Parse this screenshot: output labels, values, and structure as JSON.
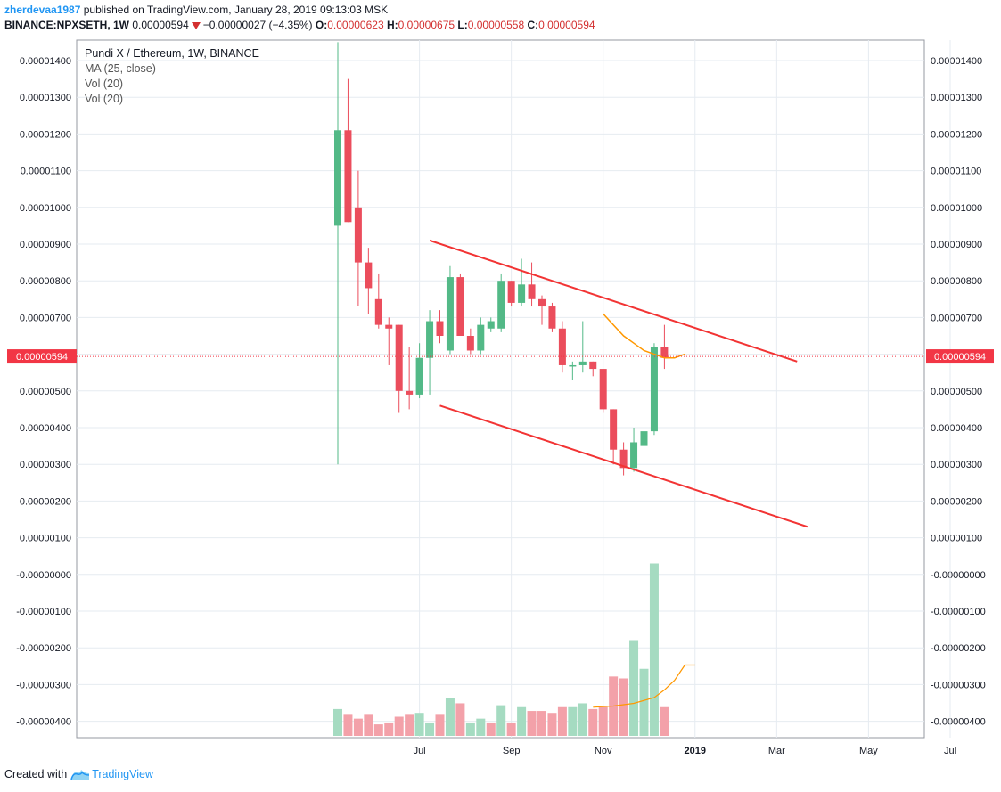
{
  "header": {
    "author": "zherdevaa1987",
    "published": " published on TradingView.com, January 28, 2019 09:13:03 MSK",
    "symbol": "BINANCE:NPXSETH, 1W",
    "last_value": "0.00000594",
    "change": "−0.00000027 (−4.35%)",
    "o_label": "O:",
    "o_value": "0.00000623",
    "h_label": "H:",
    "h_value": "0.00000675",
    "l_label": "L:",
    "l_value": "0.00000558",
    "c_label": "C:",
    "c_value": "0.00000594"
  },
  "legend": {
    "title": "Pundi X / Ethereum, 1W, BINANCE",
    "ma": "MA (25, close)",
    "vol1": "Vol (20)",
    "vol2": "Vol (20)"
  },
  "footer": {
    "created_with": "Created with",
    "brand": "TradingView"
  },
  "colors": {
    "up": "#53b987",
    "down": "#eb4d5c",
    "trend": "#f23434",
    "ma": "#ff9800",
    "grid": "#e6ebf1",
    "last_price": "#f23645"
  },
  "chart_data": {
    "type": "candlestick",
    "title": "Pundi X / Ethereum, 1W, BINANCE",
    "y_min": -4.4e-06,
    "y_max": 1.45e-05,
    "y_ticks": [
      1.4e-05,
      1.3e-05,
      1.2e-05,
      1.1e-05,
      1e-05,
      9e-06,
      8e-06,
      7e-06,
      6e-06,
      5e-06,
      4e-06,
      3e-06,
      2e-06,
      1e-06,
      0,
      -1e-06,
      -2e-06,
      -3e-06,
      -4e-06
    ],
    "y_tick_labels": [
      "0.00001400",
      "0.00001300",
      "0.00001200",
      "0.00001100",
      "0.00001000",
      "0.00000900",
      "0.00000800",
      "0.00000700",
      "",
      "0.00000500",
      "0.00000400",
      "0.00000300",
      "0.00000200",
      "0.00000100",
      "-0.00000000",
      "-0.00000100",
      "-0.00000200",
      "-0.00000300",
      "-0.00000400"
    ],
    "x_labels": [
      {
        "label": "Jul",
        "week": 2,
        "bold": false
      },
      {
        "label": "Sep",
        "week": 11,
        "bold": false
      },
      {
        "label": "Nov",
        "week": 20,
        "bold": false
      },
      {
        "label": "2019",
        "week": 29,
        "bold": true
      },
      {
        "label": "Mar",
        "week": 37,
        "bold": false
      },
      {
        "label": "May",
        "week": 46,
        "bold": false
      },
      {
        "label": "Jul",
        "week": 54,
        "bold": false
      }
    ],
    "x_range_weeks": [
      -26,
      56
    ],
    "candles": [
      {
        "o": 9.5e-06,
        "h": 1.45e-05,
        "l": 3e-06,
        "c": 1.21e-05
      },
      {
        "o": 1.21e-05,
        "h": 1.35e-05,
        "l": 9.6e-06,
        "c": 9.6e-06
      },
      {
        "o": 1e-05,
        "h": 1.1e-05,
        "l": 7.3e-06,
        "c": 8.5e-06
      },
      {
        "o": 8.5e-06,
        "h": 8.9e-06,
        "l": 7.1e-06,
        "c": 7.8e-06
      },
      {
        "o": 7.5e-06,
        "h": 8.2e-06,
        "l": 6.7e-06,
        "c": 6.8e-06
      },
      {
        "o": 6.8e-06,
        "h": 7e-06,
        "l": 5.7e-06,
        "c": 6.7e-06
      },
      {
        "o": 6.8e-06,
        "h": 6.8e-06,
        "l": 4.4e-06,
        "c": 5e-06
      },
      {
        "o": 5e-06,
        "h": 6.2e-06,
        "l": 4.5e-06,
        "c": 4.9e-06
      },
      {
        "o": 4.9e-06,
        "h": 6.3e-06,
        "l": 4.8e-06,
        "c": 5.9e-06
      },
      {
        "o": 5.9e-06,
        "h": 7.2e-06,
        "l": 4.9e-06,
        "c": 6.9e-06
      },
      {
        "o": 6.9e-06,
        "h": 7.2e-06,
        "l": 6.3e-06,
        "c": 6.5e-06
      },
      {
        "o": 6.1e-06,
        "h": 8.4e-06,
        "l": 6e-06,
        "c": 8.1e-06
      },
      {
        "o": 8.1e-06,
        "h": 8.2e-06,
        "l": 6.5e-06,
        "c": 6.5e-06
      },
      {
        "o": 6.5e-06,
        "h": 6.7e-06,
        "l": 6e-06,
        "c": 6.1e-06
      },
      {
        "o": 6.1e-06,
        "h": 7e-06,
        "l": 6e-06,
        "c": 6.8e-06
      },
      {
        "o": 6.7e-06,
        "h": 7e-06,
        "l": 6.6e-06,
        "c": 6.9e-06
      },
      {
        "o": 6.7e-06,
        "h": 8.2e-06,
        "l": 6.6e-06,
        "c": 8e-06
      },
      {
        "o": 8e-06,
        "h": 8e-06,
        "l": 7.3e-06,
        "c": 7.4e-06
      },
      {
        "o": 7.4e-06,
        "h": 8.6e-06,
        "l": 7.3e-06,
        "c": 7.9e-06
      },
      {
        "o": 7.9e-06,
        "h": 8.5e-06,
        "l": 7.3e-06,
        "c": 7.5e-06
      },
      {
        "o": 7.5e-06,
        "h": 7.6e-06,
        "l": 6.8e-06,
        "c": 7.3e-06
      },
      {
        "o": 7.3e-06,
        "h": 7.4e-06,
        "l": 6.6e-06,
        "c": 6.7e-06
      },
      {
        "o": 6.7e-06,
        "h": 6.9e-06,
        "l": 5.5e-06,
        "c": 5.7e-06
      },
      {
        "o": 5.7e-06,
        "h": 5.8e-06,
        "l": 5.3e-06,
        "c": 5.7e-06
      },
      {
        "o": 5.7e-06,
        "h": 6.9e-06,
        "l": 5.5e-06,
        "c": 5.8e-06
      },
      {
        "o": 5.8e-06,
        "h": 5.8e-06,
        "l": 5.4e-06,
        "c": 5.6e-06
      },
      {
        "o": 5.6e-06,
        "h": 5.6e-06,
        "l": 4.4e-06,
        "c": 4.5e-06
      },
      {
        "o": 4.5e-06,
        "h": 4.5e-06,
        "l": 3e-06,
        "c": 3.4e-06
      },
      {
        "o": 3.4e-06,
        "h": 3.6e-06,
        "l": 2.7e-06,
        "c": 2.9e-06
      },
      {
        "o": 2.9e-06,
        "h": 4e-06,
        "l": 2.8e-06,
        "c": 3.6e-06
      },
      {
        "o": 3.5e-06,
        "h": 4.1e-06,
        "l": 3.4e-06,
        "c": 3.9e-06
      },
      {
        "o": 3.9e-06,
        "h": 6.3e-06,
        "l": 3.8e-06,
        "c": 6.2e-06
      },
      {
        "o": 6.2e-06,
        "h": 6.8e-06,
        "l": 5.6e-06,
        "c": 5.9e-06
      }
    ],
    "volume": [
      0.7,
      0.55,
      0.45,
      0.55,
      0.3,
      0.35,
      0.5,
      0.55,
      0.6,
      0.35,
      0.55,
      1.0,
      0.85,
      0.35,
      0.45,
      0.35,
      0.8,
      0.35,
      0.75,
      0.65,
      0.65,
      0.6,
      0.75,
      0.75,
      0.85,
      0.7,
      0.75,
      1.55,
      1.5,
      2.5,
      1.75,
      4.5,
      0.75
    ],
    "volume_up": [
      true,
      false,
      false,
      false,
      false,
      false,
      false,
      false,
      true,
      true,
      false,
      true,
      false,
      true,
      true,
      false,
      true,
      false,
      true,
      false,
      false,
      false,
      false,
      true,
      true,
      false,
      false,
      false,
      false,
      true,
      true,
      true,
      false
    ],
    "ma25": [
      {
        "week": 20,
        "v": 7.1e-06
      },
      {
        "week": 21,
        "v": 6.8e-06
      },
      {
        "week": 22,
        "v": 6.5e-06
      },
      {
        "week": 23,
        "v": 6.3e-06
      },
      {
        "week": 24,
        "v": 6.1e-06
      },
      {
        "week": 25,
        "v": 6e-06
      },
      {
        "week": 26,
        "v": 5.9e-06
      },
      {
        "week": 27,
        "v": 5.9e-06
      },
      {
        "week": 28,
        "v": 6e-06
      }
    ],
    "volume_ma": [
      {
        "week": 19,
        "v": 0.75
      },
      {
        "week": 21,
        "v": 0.78
      },
      {
        "week": 23,
        "v": 0.85
      },
      {
        "week": 25,
        "v": 1.0
      },
      {
        "week": 26,
        "v": 1.2
      },
      {
        "week": 27,
        "v": 1.45
      },
      {
        "week": 28,
        "v": 1.85
      },
      {
        "week": 29,
        "v": 1.85
      }
    ],
    "trendlines": [
      {
        "from": {
          "week": 3,
          "v": 9.1e-06
        },
        "to": {
          "week": 39,
          "v": 5.8e-06
        }
      },
      {
        "from": {
          "week": 4,
          "v": 4.6e-06
        },
        "to": {
          "week": 40,
          "v": 1.3e-06
        }
      }
    ],
    "first_candle_week": -6,
    "last_price": 5.94e-06,
    "last_price_label": "0.00000594"
  }
}
